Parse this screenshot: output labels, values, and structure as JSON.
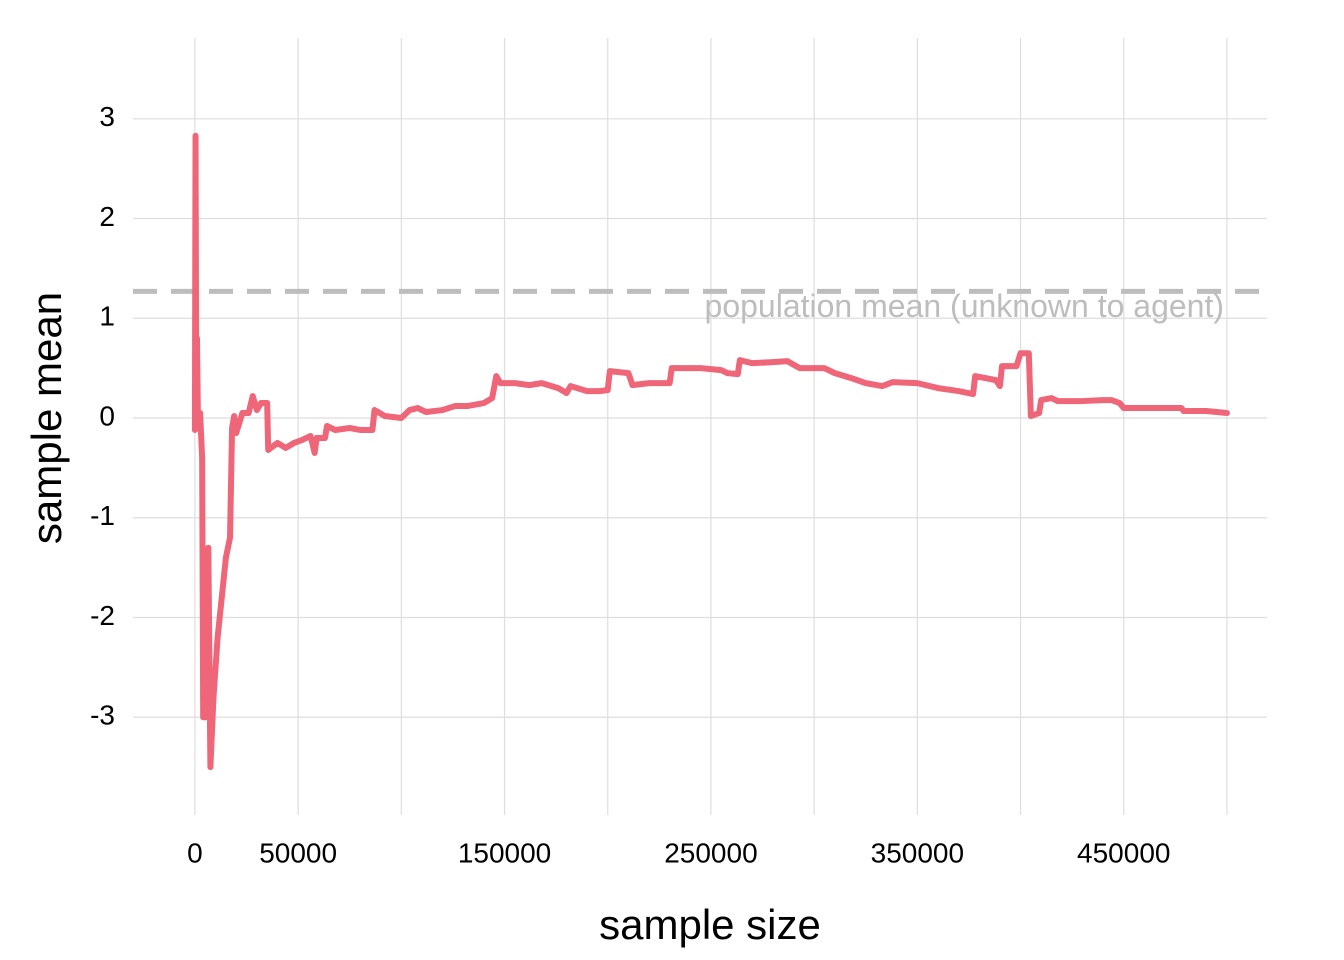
{
  "chart_data": {
    "type": "line",
    "xlabel": "sample size",
    "ylabel": "sample mean",
    "x": [
      0,
      300,
      600,
      1000,
      1500,
      2500,
      3500,
      4000,
      5000,
      6500,
      7500,
      9000,
      11000,
      13000,
      15000,
      17000,
      18000,
      19000,
      20000,
      23000,
      26000,
      28000,
      30000,
      32000,
      35000,
      35500,
      40000,
      44000,
      48000,
      52000,
      56000,
      58000,
      59000,
      63000,
      64000,
      68000,
      75000,
      80000,
      86000,
      87000,
      92000,
      100000,
      104000,
      108000,
      112000,
      120000,
      126000,
      132000,
      140000,
      144000,
      146000,
      148000,
      155000,
      162000,
      168000,
      176000,
      180000,
      182000,
      190000,
      196000,
      200000,
      201000,
      210000,
      212000,
      220000,
      230000,
      231000,
      245000,
      255000,
      258000,
      263000,
      264000,
      270000,
      280000,
      287000,
      293000,
      305000,
      310000,
      318000,
      325000,
      333000,
      338000,
      350000,
      360000,
      370000,
      377000,
      378000,
      388000,
      390000,
      391000,
      398000,
      400000,
      404000,
      405000,
      409000,
      410000,
      415000,
      418000,
      430000,
      440000,
      444000,
      448000,
      450000,
      470000,
      478000,
      479000,
      490000,
      500000
    ],
    "values": [
      -0.12,
      2.83,
      0.5,
      0.8,
      -0.1,
      0.05,
      -0.4,
      -3.0,
      -3.0,
      -1.3,
      -3.5,
      -2.8,
      -2.2,
      -1.8,
      -1.4,
      -1.2,
      -0.1,
      0.02,
      -0.15,
      0.05,
      0.05,
      0.22,
      0.08,
      0.15,
      0.15,
      -0.32,
      -0.25,
      -0.3,
      -0.25,
      -0.22,
      -0.18,
      -0.35,
      -0.2,
      -0.2,
      -0.08,
      -0.12,
      -0.1,
      -0.12,
      -0.12,
      0.08,
      0.02,
      0.0,
      0.08,
      0.1,
      0.06,
      0.08,
      0.12,
      0.12,
      0.15,
      0.2,
      0.42,
      0.35,
      0.35,
      0.33,
      0.35,
      0.3,
      0.25,
      0.32,
      0.27,
      0.27,
      0.28,
      0.47,
      0.45,
      0.33,
      0.35,
      0.35,
      0.5,
      0.5,
      0.48,
      0.45,
      0.44,
      0.58,
      0.55,
      0.56,
      0.57,
      0.5,
      0.5,
      0.45,
      0.4,
      0.35,
      0.32,
      0.36,
      0.35,
      0.3,
      0.27,
      0.24,
      0.42,
      0.38,
      0.32,
      0.52,
      0.52,
      0.65,
      0.65,
      0.02,
      0.05,
      0.18,
      0.2,
      0.17,
      0.17,
      0.18,
      0.18,
      0.15,
      0.1,
      0.1,
      0.1,
      0.07,
      0.07,
      0.05
    ],
    "color": "#ee6677",
    "xlim": [
      -30000,
      519400
    ],
    "ylim": [
      -3.98,
      3.81
    ],
    "xticks": [
      0,
      50000,
      150000,
      250000,
      350000,
      450000
    ],
    "xgrid_minor": [
      100000,
      200000,
      300000,
      400000,
      500000
    ],
    "yticks": [
      -3,
      -2,
      -1,
      0,
      1,
      2,
      3
    ],
    "grid": true,
    "hlines": [
      {
        "value": 1.27,
        "label": "population mean (unknown to agent)",
        "color": "#bdbdbd"
      }
    ]
  }
}
